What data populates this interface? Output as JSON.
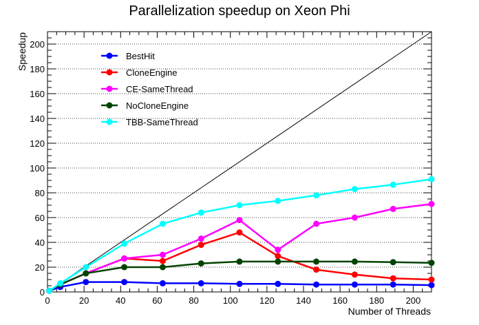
{
  "chart_data": {
    "type": "line",
    "title": "Parallelization speedup on Xeon Phi",
    "xlabel": "Number of Threads",
    "ylabel": "Speedup",
    "xlim": [
      0,
      210
    ],
    "ylim": [
      0,
      210
    ],
    "x_ticks": [
      0,
      20,
      40,
      60,
      80,
      100,
      120,
      140,
      160,
      180,
      200
    ],
    "y_ticks": [
      0,
      20,
      40,
      60,
      80,
      100,
      120,
      140,
      160,
      180,
      200
    ],
    "grid": "horizontal dotted",
    "legend_position": "top-left",
    "reference_line": {
      "x": [
        0,
        210
      ],
      "y": [
        0,
        210
      ],
      "color": "#000000"
    },
    "series": [
      {
        "name": "BestHit",
        "color": "#0000ff",
        "x": [
          1,
          7,
          21,
          42,
          63,
          84,
          105,
          126,
          147,
          168,
          189,
          210
        ],
        "y": [
          1,
          4,
          8,
          8,
          7,
          7,
          6.5,
          6.5,
          6,
          6,
          6,
          5.5
        ]
      },
      {
        "name": "CloneEngine",
        "color": "#ff0000",
        "x": [
          1,
          7,
          21,
          42,
          63,
          84,
          105,
          126,
          147,
          168,
          189,
          210
        ],
        "y": [
          1,
          6,
          15,
          27,
          25,
          38,
          48,
          29,
          18,
          14,
          11,
          10
        ]
      },
      {
        "name": "CE-SameThread",
        "color": "#ff00ff",
        "x": [
          1,
          7,
          21,
          42,
          63,
          84,
          105,
          126,
          147,
          168,
          189,
          210
        ],
        "y": [
          1,
          6,
          15,
          27,
          30,
          43,
          58,
          34,
          55,
          60,
          67,
          71
        ]
      },
      {
        "name": "NoCloneEngine",
        "color": "#004400",
        "x": [
          1,
          7,
          21,
          42,
          63,
          84,
          105,
          126,
          147,
          168,
          189,
          210
        ],
        "y": [
          1,
          6,
          15,
          20,
          20,
          23,
          24.5,
          24.5,
          24.5,
          24.5,
          24,
          23.5
        ]
      },
      {
        "name": "TBB-SameThread",
        "color": "#00ffff",
        "x": [
          1,
          7,
          21,
          42,
          63,
          84,
          105,
          126,
          147,
          168,
          189,
          210
        ],
        "y": [
          1,
          7,
          20,
          39,
          55,
          64,
          70,
          73.5,
          78,
          83,
          86.5,
          91
        ]
      }
    ]
  }
}
